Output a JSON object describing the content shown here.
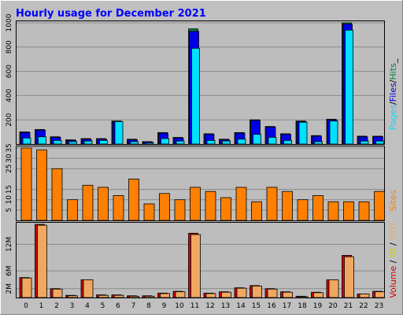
{
  "title": "Hourly usage for December 2021",
  "hours": [
    "0",
    "1",
    "2",
    "3",
    "4",
    "5",
    "6",
    "7",
    "8",
    "9",
    "10",
    "11",
    "12",
    "13",
    "14",
    "15",
    "16",
    "17",
    "18",
    "19",
    "20",
    "21",
    "22",
    "23"
  ],
  "colors": {
    "background": "#C0C0C0",
    "plot_bg": "#BDBDBD",
    "title": "#0000FF",
    "pages": "#00E0FF",
    "files": "#0000E8",
    "hits": "#008040",
    "sites": "#FF8000",
    "kbytes_in": "#D00000",
    "kbytes_out": "#F0A860",
    "grid": "#8A8A8A"
  },
  "legends": {
    "top": [
      {
        "text": "Pages",
        "color": "#00E0FF"
      },
      {
        "text": "/",
        "color": "#000000"
      },
      {
        "text": "Files",
        "color": "#0000E8"
      },
      {
        "text": "/",
        "color": "#000000"
      },
      {
        "text": "Hits",
        "color": "#008040"
      },
      {
        "text": "_",
        "color": "#000000"
      }
    ],
    "middle": [
      {
        "text": "Sites",
        "color": "#FF8000"
      }
    ],
    "bottom": [
      {
        "text": "Volume",
        "color": "#D00000"
      },
      {
        "text": " / ",
        "color": "#000000"
      },
      {
        "text": "IN",
        "color": "#D0D000"
      },
      {
        "text": " / ",
        "color": "#000000"
      },
      {
        "text": "OUT",
        "color": "#F0A860"
      }
    ]
  },
  "chart_data": [
    {
      "type": "bar",
      "panel": "hits-files-pages",
      "ylim": [
        0,
        1000
      ],
      "yticks": [
        200,
        400,
        600,
        800,
        1000
      ],
      "categories": [
        "0",
        "1",
        "2",
        "3",
        "4",
        "5",
        "6",
        "7",
        "8",
        "9",
        "10",
        "11",
        "12",
        "13",
        "14",
        "15",
        "16",
        "17",
        "18",
        "19",
        "20",
        "21",
        "22",
        "23"
      ],
      "series": [
        {
          "name": "Hits",
          "values": [
            100,
            120,
            60,
            35,
            45,
            45,
            190,
            40,
            20,
            95,
            55,
            950,
            85,
            40,
            95,
            200,
            145,
            85,
            190,
            70,
            205,
            1000,
            65,
            65
          ]
        },
        {
          "name": "Files",
          "values": [
            95,
            115,
            55,
            30,
            40,
            40,
            185,
            35,
            18,
            90,
            50,
            930,
            80,
            35,
            90,
            195,
            140,
            80,
            185,
            65,
            200,
            990,
            60,
            60
          ]
        },
        {
          "name": "Pages",
          "values": [
            50,
            60,
            30,
            20,
            25,
            30,
            185,
            20,
            10,
            45,
            25,
            790,
            30,
            25,
            40,
            80,
            55,
            30,
            180,
            20,
            190,
            940,
            25,
            25
          ]
        }
      ]
    },
    {
      "type": "bar",
      "panel": "sites",
      "ylim": [
        0,
        35
      ],
      "yticks": [
        5,
        10,
        15,
        25,
        30,
        35
      ],
      "categories": [
        "0",
        "1",
        "2",
        "3",
        "4",
        "5",
        "6",
        "7",
        "8",
        "9",
        "10",
        "11",
        "12",
        "13",
        "14",
        "15",
        "16",
        "17",
        "18",
        "19",
        "20",
        "21",
        "22",
        "23"
      ],
      "series": [
        {
          "name": "Sites",
          "values": [
            35,
            34,
            25,
            10,
            17,
            16,
            12,
            20,
            8,
            13,
            10,
            16,
            14,
            11,
            16,
            9,
            16,
            14,
            10,
            12,
            9,
            9,
            9,
            14
          ]
        }
      ]
    },
    {
      "type": "bar",
      "panel": "volume",
      "ylim": [
        0,
        16.5
      ],
      "yticks": [
        2,
        6,
        12
      ],
      "yticklabels": [
        "2M",
        "6M",
        "12M"
      ],
      "categories": [
        "0",
        "1",
        "2",
        "3",
        "4",
        "5",
        "6",
        "7",
        "8",
        "9",
        "10",
        "11",
        "12",
        "13",
        "14",
        "15",
        "16",
        "17",
        "18",
        "19",
        "20",
        "21",
        "22",
        "23"
      ],
      "series": [
        {
          "name": "KBytes",
          "values": [
            4.5,
            16.5,
            2,
            0.5,
            4,
            0.6,
            0.6,
            0.4,
            0.4,
            1.0,
            1.4,
            14.5,
            1.0,
            1.3,
            2.2,
            2.7,
            2.0,
            1.3,
            0.3,
            1.2,
            4.0,
            9.5,
            0.8,
            1.4
          ]
        },
        {
          "name": "KBytes Out",
          "values": [
            4.4,
            16.3,
            1.9,
            0.4,
            4.0,
            0.5,
            0.5,
            0.3,
            0.3,
            0.9,
            1.3,
            14.2,
            0.9,
            1.2,
            2.1,
            2.6,
            1.9,
            1.2,
            0.2,
            1.1,
            4.0,
            9.2,
            0.8,
            1.3
          ]
        }
      ]
    }
  ]
}
